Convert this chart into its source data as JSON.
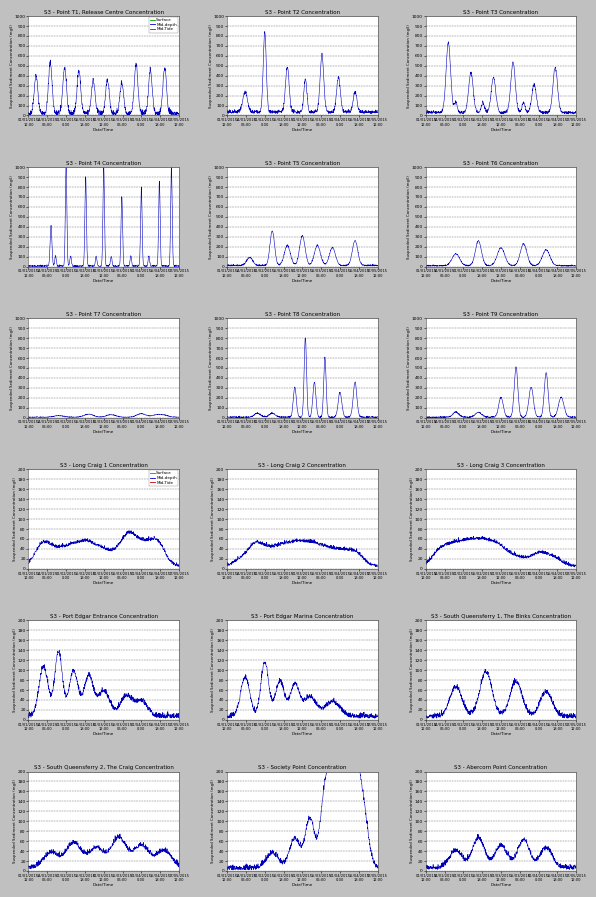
{
  "titles": [
    "S3 - Point T1, Release Centre Concentration",
    "S3 - Point T2 Concentration",
    "S3 - Point T3 Concentration",
    "S3 - Point T4 Concentration",
    "S3 - Point T5 Concentration",
    "S3 - Point T6 Concentration",
    "S3 - Point T7 Concentration",
    "S3 - Point T8 Concentration",
    "S3 - Point T9 Concentration",
    "S3 - Long Craig 1 Concentration",
    "S3 - Long Craig 2 Concentration",
    "S3 - Long Craig 3 Concentration",
    "S3 - Port Edgar Entrance Concentration",
    "S3 - Port Edgar Marina Concentration",
    "S3 - South Queensferry 1, The Binks Concentration",
    "S3 - South Queensferry 2, The Craig Concentration",
    "S3 - Society Point Concentration",
    "S3 - Abercorn Point Concentration"
  ],
  "ylabel": "Suspended Sediment Concentration (mg/l)",
  "xlabel": "Date/Time",
  "line_color": "#0000bb",
  "fig_facecolor": "#c8c8c8",
  "plot_bg_color": "#ffffff",
  "panel_facecolor": "#f0f0f0",
  "ylim_high": [
    0,
    1000
  ],
  "ylim_low": [
    0,
    200
  ],
  "yticks_high": [
    0,
    100,
    200,
    300,
    400,
    500,
    600,
    700,
    800,
    900,
    1000
  ],
  "yticks_low": [
    0,
    20,
    40,
    60,
    80,
    100,
    120,
    140,
    160,
    180,
    200
  ],
  "num_rows": 6,
  "num_cols": 3,
  "legend_labels": [
    "Surface",
    "Mid-depth",
    "Mid-Tide"
  ],
  "legend_colors": [
    "#00aa00",
    "#0000cc",
    "#cc0000"
  ],
  "legend_in_plot_idx": 0,
  "legend_in_plot_idx2": 9,
  "xtick_labels": [
    "01/01/2015\n12:00",
    "14/01/2015\n06:00",
    "01/02/2015\n0:00",
    "15/02/2015\n18:00",
    "01/03/2015\n12:00",
    "15/03/2015\n06:00",
    "01/04/2015\n0:00",
    "15/04/2015\n18:00",
    "17/05/2015\n12:00"
  ]
}
